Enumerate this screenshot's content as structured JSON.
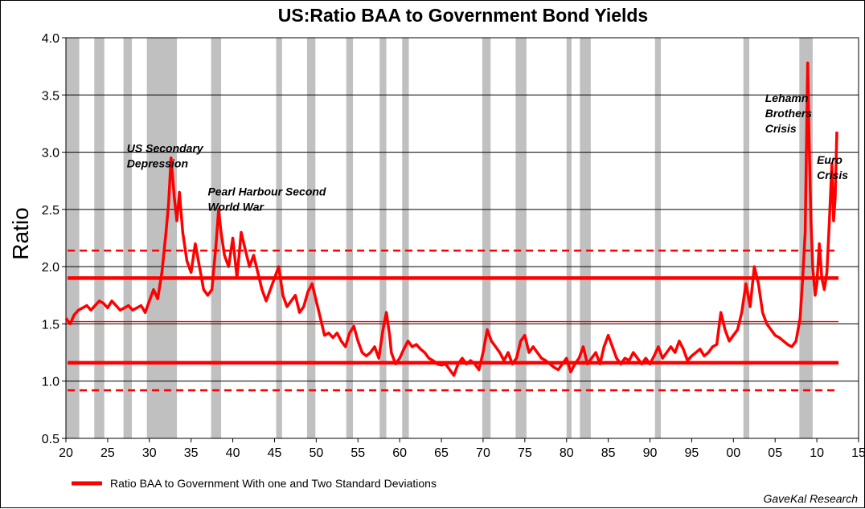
{
  "chart_data": {
    "type": "line",
    "title": "US:Ratio BAA to Government Bond Yields",
    "ylabel": "Ratio",
    "xlabel": "",
    "xlim": [
      1920,
      2015
    ],
    "ylim": [
      0.5,
      4.0
    ],
    "x_tick_values": [
      1920,
      1925,
      1930,
      1935,
      1940,
      1945,
      1950,
      1955,
      1960,
      1965,
      1970,
      1975,
      1980,
      1985,
      1990,
      1995,
      2000,
      2005,
      2010,
      2015
    ],
    "x_tick_labels": [
      "20",
      "25",
      "30",
      "35",
      "40",
      "45",
      "50",
      "55",
      "60",
      "65",
      "70",
      "75",
      "80",
      "85",
      "90",
      "95",
      "00",
      "05",
      "10",
      "15"
    ],
    "y_ticks": [
      0.5,
      1.0,
      1.5,
      2.0,
      2.5,
      3.0,
      3.5,
      4.0
    ],
    "y_tick_labels": [
      "0.5",
      "1.0",
      "1.5",
      "2.0",
      "2.5",
      "3.0",
      "3.5",
      "4.0"
    ],
    "grid": true,
    "recessions": [
      [
        1920.0,
        1921.6
      ],
      [
        1923.4,
        1924.6
      ],
      [
        1926.9,
        1927.9
      ],
      [
        1929.7,
        1933.3
      ],
      [
        1937.4,
        1938.6
      ],
      [
        1945.2,
        1945.9
      ],
      [
        1948.9,
        1949.9
      ],
      [
        1953.6,
        1954.4
      ],
      [
        1957.6,
        1958.4
      ],
      [
        1960.3,
        1961.1
      ],
      [
        1969.9,
        1970.9
      ],
      [
        1973.9,
        1975.2
      ],
      [
        1980.0,
        1980.6
      ],
      [
        1981.6,
        1982.9
      ],
      [
        1990.6,
        1991.3
      ],
      [
        2001.2,
        2001.9
      ],
      [
        2007.9,
        2009.5
      ]
    ],
    "reference_lines": [
      {
        "label": "mean",
        "value": 1.52,
        "style": "thin"
      },
      {
        "label": "+1 SD",
        "value": 1.9,
        "style": "solid"
      },
      {
        "label": "-1 SD",
        "value": 1.16,
        "style": "solid"
      },
      {
        "label": "+2 SD",
        "value": 2.14,
        "style": "dashed"
      },
      {
        "label": "-2 SD",
        "value": 0.92,
        "style": "dashed"
      }
    ],
    "series": [
      {
        "name": "Ratio BAA to Government With one and Two Standard Deviations",
        "color": "#ff0000",
        "points": [
          [
            1920.0,
            1.55
          ],
          [
            1920.5,
            1.5
          ],
          [
            1921.0,
            1.58
          ],
          [
            1921.5,
            1.62
          ],
          [
            1922.0,
            1.64
          ],
          [
            1922.5,
            1.66
          ],
          [
            1923.0,
            1.62
          ],
          [
            1923.5,
            1.66
          ],
          [
            1924.0,
            1.7
          ],
          [
            1924.5,
            1.68
          ],
          [
            1925.0,
            1.64
          ],
          [
            1925.5,
            1.7
          ],
          [
            1926.0,
            1.66
          ],
          [
            1926.5,
            1.62
          ],
          [
            1927.0,
            1.64
          ],
          [
            1927.5,
            1.66
          ],
          [
            1928.0,
            1.62
          ],
          [
            1928.5,
            1.64
          ],
          [
            1929.0,
            1.66
          ],
          [
            1929.5,
            1.6
          ],
          [
            1930.0,
            1.7
          ],
          [
            1930.5,
            1.8
          ],
          [
            1931.0,
            1.72
          ],
          [
            1931.5,
            1.95
          ],
          [
            1932.0,
            2.3
          ],
          [
            1932.3,
            2.55
          ],
          [
            1932.6,
            2.95
          ],
          [
            1933.0,
            2.6
          ],
          [
            1933.3,
            2.4
          ],
          [
            1933.6,
            2.65
          ],
          [
            1934.0,
            2.3
          ],
          [
            1934.5,
            2.05
          ],
          [
            1935.0,
            1.95
          ],
          [
            1935.5,
            2.2
          ],
          [
            1936.0,
            2.0
          ],
          [
            1936.5,
            1.8
          ],
          [
            1937.0,
            1.75
          ],
          [
            1937.5,
            1.8
          ],
          [
            1938.0,
            2.2
          ],
          [
            1938.3,
            2.5
          ],
          [
            1938.6,
            2.3
          ],
          [
            1939.0,
            2.1
          ],
          [
            1939.5,
            2.0
          ],
          [
            1940.0,
            2.25
          ],
          [
            1940.5,
            1.9
          ],
          [
            1941.0,
            2.3
          ],
          [
            1941.5,
            2.15
          ],
          [
            1942.0,
            2.0
          ],
          [
            1942.5,
            2.1
          ],
          [
            1943.0,
            1.95
          ],
          [
            1943.5,
            1.8
          ],
          [
            1944.0,
            1.7
          ],
          [
            1944.5,
            1.8
          ],
          [
            1945.0,
            1.9
          ],
          [
            1945.5,
            2.0
          ],
          [
            1946.0,
            1.75
          ],
          [
            1946.5,
            1.65
          ],
          [
            1947.0,
            1.7
          ],
          [
            1947.5,
            1.75
          ],
          [
            1948.0,
            1.6
          ],
          [
            1948.5,
            1.65
          ],
          [
            1949.0,
            1.78
          ],
          [
            1949.5,
            1.85
          ],
          [
            1950.0,
            1.7
          ],
          [
            1950.5,
            1.55
          ],
          [
            1951.0,
            1.4
          ],
          [
            1951.5,
            1.42
          ],
          [
            1952.0,
            1.38
          ],
          [
            1952.5,
            1.42
          ],
          [
            1953.0,
            1.35
          ],
          [
            1953.5,
            1.3
          ],
          [
            1954.0,
            1.42
          ],
          [
            1954.5,
            1.48
          ],
          [
            1955.0,
            1.35
          ],
          [
            1955.5,
            1.25
          ],
          [
            1956.0,
            1.22
          ],
          [
            1956.5,
            1.25
          ],
          [
            1957.0,
            1.3
          ],
          [
            1957.5,
            1.2
          ],
          [
            1958.0,
            1.45
          ],
          [
            1958.4,
            1.6
          ],
          [
            1958.8,
            1.4
          ],
          [
            1959.0,
            1.25
          ],
          [
            1959.5,
            1.15
          ],
          [
            1960.0,
            1.2
          ],
          [
            1960.5,
            1.28
          ],
          [
            1961.0,
            1.35
          ],
          [
            1961.5,
            1.3
          ],
          [
            1962.0,
            1.32
          ],
          [
            1962.5,
            1.28
          ],
          [
            1963.0,
            1.25
          ],
          [
            1963.5,
            1.2
          ],
          [
            1964.0,
            1.18
          ],
          [
            1964.5,
            1.15
          ],
          [
            1965.0,
            1.14
          ],
          [
            1965.5,
            1.15
          ],
          [
            1966.0,
            1.1
          ],
          [
            1966.5,
            1.05
          ],
          [
            1967.0,
            1.15
          ],
          [
            1967.5,
            1.2
          ],
          [
            1968.0,
            1.15
          ],
          [
            1968.5,
            1.18
          ],
          [
            1969.0,
            1.15
          ],
          [
            1969.5,
            1.1
          ],
          [
            1970.0,
            1.25
          ],
          [
            1970.5,
            1.45
          ],
          [
            1971.0,
            1.35
          ],
          [
            1971.5,
            1.3
          ],
          [
            1972.0,
            1.25
          ],
          [
            1972.5,
            1.18
          ],
          [
            1973.0,
            1.25
          ],
          [
            1973.5,
            1.15
          ],
          [
            1974.0,
            1.2
          ],
          [
            1974.5,
            1.35
          ],
          [
            1975.0,
            1.4
          ],
          [
            1975.5,
            1.25
          ],
          [
            1976.0,
            1.3
          ],
          [
            1976.5,
            1.25
          ],
          [
            1977.0,
            1.2
          ],
          [
            1977.5,
            1.18
          ],
          [
            1978.0,
            1.15
          ],
          [
            1978.5,
            1.12
          ],
          [
            1979.0,
            1.1
          ],
          [
            1979.5,
            1.15
          ],
          [
            1980.0,
            1.2
          ],
          [
            1980.5,
            1.08
          ],
          [
            1981.0,
            1.15
          ],
          [
            1981.5,
            1.2
          ],
          [
            1982.0,
            1.3
          ],
          [
            1982.5,
            1.15
          ],
          [
            1983.0,
            1.2
          ],
          [
            1983.5,
            1.25
          ],
          [
            1984.0,
            1.15
          ],
          [
            1984.5,
            1.3
          ],
          [
            1985.0,
            1.4
          ],
          [
            1985.5,
            1.3
          ],
          [
            1986.0,
            1.2
          ],
          [
            1986.5,
            1.15
          ],
          [
            1987.0,
            1.2
          ],
          [
            1987.5,
            1.18
          ],
          [
            1988.0,
            1.25
          ],
          [
            1988.5,
            1.2
          ],
          [
            1989.0,
            1.15
          ],
          [
            1989.5,
            1.2
          ],
          [
            1990.0,
            1.15
          ],
          [
            1990.5,
            1.22
          ],
          [
            1991.0,
            1.3
          ],
          [
            1991.5,
            1.2
          ],
          [
            1992.0,
            1.25
          ],
          [
            1992.5,
            1.3
          ],
          [
            1993.0,
            1.25
          ],
          [
            1993.5,
            1.35
          ],
          [
            1994.0,
            1.28
          ],
          [
            1994.5,
            1.18
          ],
          [
            1995.0,
            1.22
          ],
          [
            1995.5,
            1.25
          ],
          [
            1996.0,
            1.28
          ],
          [
            1996.5,
            1.22
          ],
          [
            1997.0,
            1.25
          ],
          [
            1997.5,
            1.3
          ],
          [
            1998.0,
            1.32
          ],
          [
            1998.5,
            1.6
          ],
          [
            1999.0,
            1.45
          ],
          [
            1999.5,
            1.35
          ],
          [
            2000.0,
            1.4
          ],
          [
            2000.5,
            1.45
          ],
          [
            2001.0,
            1.6
          ],
          [
            2001.5,
            1.85
          ],
          [
            2002.0,
            1.65
          ],
          [
            2002.5,
            2.0
          ],
          [
            2003.0,
            1.85
          ],
          [
            2003.5,
            1.6
          ],
          [
            2004.0,
            1.5
          ],
          [
            2004.5,
            1.45
          ],
          [
            2005.0,
            1.4
          ],
          [
            2005.5,
            1.38
          ],
          [
            2006.0,
            1.35
          ],
          [
            2006.5,
            1.32
          ],
          [
            2007.0,
            1.3
          ],
          [
            2007.5,
            1.35
          ],
          [
            2008.0,
            1.55
          ],
          [
            2008.3,
            1.9
          ],
          [
            2008.6,
            2.3
          ],
          [
            2008.9,
            3.78
          ],
          [
            2009.1,
            3.0
          ],
          [
            2009.3,
            2.4
          ],
          [
            2009.5,
            2.0
          ],
          [
            2009.8,
            1.75
          ],
          [
            2010.0,
            1.85
          ],
          [
            2010.3,
            2.2
          ],
          [
            2010.6,
            1.9
          ],
          [
            2010.9,
            1.8
          ],
          [
            2011.2,
            1.95
          ],
          [
            2011.5,
            2.4
          ],
          [
            2011.8,
            2.9
          ],
          [
            2012.0,
            2.4
          ],
          [
            2012.2,
            2.6
          ],
          [
            2012.4,
            3.18
          ]
        ]
      }
    ],
    "annotations": [
      {
        "lines": [
          "US Secondary",
          "Depression"
        ],
        "x": 1927.3,
        "y": 3.0
      },
      {
        "lines": [
          "Pearl  Harbour Second",
          "World War"
        ],
        "x": 1937.0,
        "y": 2.62
      },
      {
        "lines": [
          "Lehamn",
          "Brothers",
          "Crisis"
        ],
        "x": 2003.8,
        "y": 3.44
      },
      {
        "lines": [
          "Euro",
          "Crisis"
        ],
        "x": 2010.0,
        "y": 2.9
      }
    ],
    "legend": {
      "position": "bottom-left",
      "label": "Ratio BAA to Government With one and Two Standard Deviations"
    },
    "source": "GaveKal Research"
  }
}
